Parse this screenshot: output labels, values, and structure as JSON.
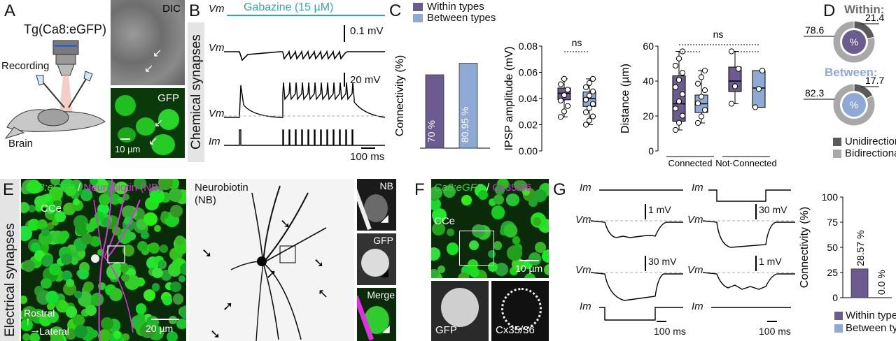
{
  "panels": {
    "A": "A",
    "B": "B",
    "C": "C",
    "D": "D",
    "E": "E",
    "F": "F",
    "G": "G"
  },
  "side": {
    "chemical": "Chemical synapses",
    "electrical": "Electrical synapses"
  },
  "panelA": {
    "title": "Tg(Ca8:eGFP)",
    "recording": "Recording",
    "brain": "Brain",
    "dic": "DIC",
    "gfp": "GFP",
    "scale": "10 µm"
  },
  "panelB": {
    "gabazine": "Gabazine (15 µM)",
    "vm1": "Vm",
    "vm2": "Vm",
    "vm3": "Vm",
    "im": "Im",
    "scale1": "0.1 mV",
    "scale2": "20 mV",
    "timescale": "100 ms"
  },
  "legendC": {
    "within": "Within types",
    "between": "Between types",
    "within_color": "#6b5b8e",
    "between_color": "#8ea9d4"
  },
  "chart_data": [
    {
      "type": "bar",
      "id": "connectivity",
      "categories": [
        "Within types",
        "Between types"
      ],
      "values": [
        70,
        80.95
      ],
      "labels": [
        "70 %",
        "80.95 %"
      ],
      "ylabel": "Connectivity (%)",
      "ylim": [
        0,
        100
      ],
      "ticks": []
    },
    {
      "type": "box",
      "id": "ipsp",
      "ylabel": "IPSP amplitude (mV)",
      "ylim": [
        0,
        0.08
      ],
      "ticks": [
        "0.00",
        "0.02",
        "0.04",
        "0.06",
        "0.08"
      ],
      "annotation": "ns",
      "series": [
        {
          "name": "Within types",
          "median": 0.044,
          "q1": 0.039,
          "q3": 0.048,
          "min": 0.026,
          "max": 0.055
        },
        {
          "name": "Between types",
          "median": 0.04,
          "q1": 0.034,
          "q3": 0.045,
          "min": 0.02,
          "max": 0.055
        }
      ]
    },
    {
      "type": "box",
      "id": "distance",
      "ylabel": "Distance (µm)",
      "ylim": [
        0,
        60
      ],
      "ticks": [
        "0",
        "20",
        "40",
        "60"
      ],
      "annotation": "ns",
      "groups": [
        "Connected",
        "Not-Connected"
      ],
      "series": [
        {
          "name": "Within types",
          "group": "Connected",
          "median": 27,
          "q1": 17,
          "q3": 43,
          "min": 12,
          "max": 57
        },
        {
          "name": "Between types",
          "group": "Connected",
          "median": 27,
          "q1": 22,
          "q3": 32,
          "min": 16,
          "max": 46
        },
        {
          "name": "Within types",
          "group": "Not-Connected",
          "median": 40,
          "q1": 34,
          "q3": 48,
          "min": 27,
          "max": 57
        },
        {
          "name": "Between types",
          "group": "Not-Connected",
          "median": 36,
          "q1": 25,
          "q3": 46,
          "min": 25,
          "max": 46
        }
      ]
    },
    {
      "type": "pie",
      "id": "within",
      "title": "Within:",
      "slices": [
        {
          "label": "Unidirectional",
          "value": 21.4
        },
        {
          "label": "Bidirectional",
          "value": 78.6
        }
      ],
      "center": "%"
    },
    {
      "type": "pie",
      "id": "between",
      "title": "Between:",
      "slices": [
        {
          "label": "Unidirectional",
          "value": 17.7
        },
        {
          "label": "Bidirectional",
          "value": 82.3
        }
      ],
      "center": "%"
    },
    {
      "type": "bar",
      "id": "electrical_connectivity",
      "categories": [
        "Within types",
        "Between types"
      ],
      "values": [
        28.57,
        0.0
      ],
      "labels": [
        "28.57 %",
        "0.0 %"
      ],
      "ylabel": "Connectivity (%)",
      "ylim": [
        0,
        100
      ],
      "ticks": [
        "0",
        "25",
        "50",
        "75",
        "100"
      ]
    }
  ],
  "panelD": {
    "uni": "Unidirectional",
    "bi": "Bidirectional",
    "uni_color": "#5a5a5a",
    "bi_color": "#a8a8a8",
    "within_title_color": "#6b6b6b",
    "between_title_color": "#8ea9d4"
  },
  "panelE": {
    "gfp": "Ca8:eGFP",
    "sep": "/",
    "nb": "Neurobiotin (NB)",
    "cce": "CCe",
    "rostral": "Rostral",
    "lateral": "Lateral",
    "scale": "20 µm",
    "nbTitle1": "Neurobiotin",
    "nbTitle2": "(NB)",
    "inset1": "NB",
    "inset2": "GFP",
    "inset3": "Merge"
  },
  "panelF": {
    "gfp": "Ca8:eGFP",
    "sep": "/",
    "cx": "Cx35/36",
    "cce": "CCe",
    "scale": "10 µm",
    "inset1": "GFP",
    "inset2": "Cx35/36"
  },
  "panelG": {
    "im1": "Im",
    "im2": "Im",
    "im3": "Im",
    "im4": "Im",
    "vm1": "Vm",
    "vm2": "Vm",
    "vm3": "Vm",
    "vm4": "Vm",
    "s1": "1 mV",
    "s2": "30 mV",
    "s3": "30 mV",
    "s4": "1 mV",
    "t1": "100 ms",
    "t2": "100 ms"
  }
}
